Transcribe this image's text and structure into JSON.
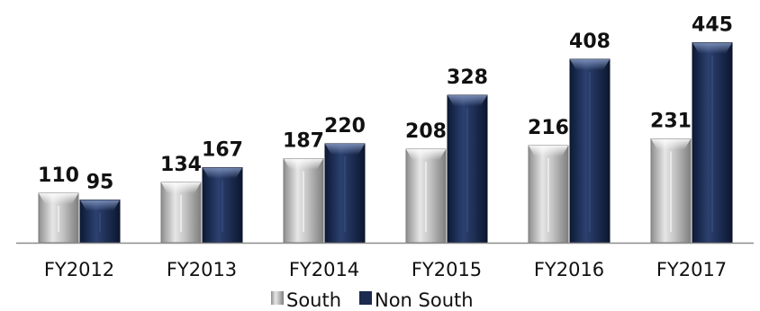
{
  "chart_data": {
    "type": "bar",
    "categories": [
      "FY2012",
      "FY2013",
      "FY2014",
      "FY2015",
      "FY2016",
      "FY2017"
    ],
    "series": [
      {
        "name": "South",
        "values": [
          110,
          134,
          187,
          208,
          216,
          231
        ],
        "color": "#b0b0b0"
      },
      {
        "name": "Non South",
        "values": [
          95,
          167,
          220,
          328,
          408,
          445
        ],
        "color": "#1b2a4e"
      }
    ],
    "ylim": [
      0,
      450
    ],
    "grid": false,
    "data_labels": true,
    "legend_position": "bottom",
    "title": "",
    "xlabel": "",
    "ylabel": ""
  }
}
